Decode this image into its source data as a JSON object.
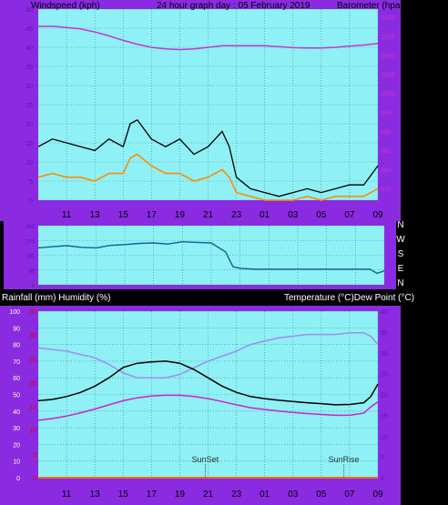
{
  "colors": {
    "frame": "#8a2be2",
    "plot_bg": "#8ff0f5",
    "grid": "#3a8a8a",
    "wind_gust": "#000000",
    "wind_avg": "#ff8c00",
    "barometer": "#cc33cc",
    "direction": "#1a5f8a",
    "humidity": "#a08cf0",
    "temperature": "#000000",
    "dew_point": "#d020d0",
    "rain_axis": "#e00000",
    "rain_line": "#ff6a00",
    "header_text": "#000000"
  },
  "chart_data": [
    {
      "type": "line",
      "id": "wind-baro",
      "title": "24 hour graph day : 05 February 2019",
      "ylabel_left": "Windspeed (kph)",
      "ylabel_right": "Barometer (hpa)",
      "x_ticks": [
        "11",
        "13",
        "15",
        "17",
        "19",
        "21",
        "23",
        "01",
        "03",
        "05",
        "07",
        "09"
      ],
      "xlim_hours": [
        9,
        33
      ],
      "left_ticks": [
        0,
        5,
        10,
        15,
        20,
        25,
        30,
        35,
        40,
        45,
        50
      ],
      "left_ylim": [
        0,
        50
      ],
      "right_ticks": [
        975,
        980,
        985,
        990,
        995,
        1000,
        1005,
        1010,
        1015,
        1020
      ],
      "right_ylim": [
        972,
        1022
      ],
      "grid": true,
      "series": [
        {
          "name": "Gust",
          "axis": "left",
          "x": [
            9,
            10,
            11,
            12,
            13,
            14,
            15,
            15.5,
            16,
            17,
            18,
            19,
            20,
            21,
            22,
            22.5,
            23,
            24,
            25,
            26,
            27,
            28,
            29,
            30,
            31,
            32,
            33
          ],
          "y": [
            14,
            16,
            15,
            14,
            13,
            16,
            14,
            20,
            21,
            16,
            14,
            16,
            12,
            14,
            18,
            14,
            6,
            3,
            2,
            1,
            2,
            3,
            2,
            3,
            4,
            4,
            9
          ]
        },
        {
          "name": "Average",
          "axis": "left",
          "x": [
            9,
            10,
            11,
            12,
            13,
            14,
            15,
            15.5,
            16,
            17,
            18,
            19,
            20,
            21,
            22,
            22.5,
            23,
            24,
            25,
            26,
            27,
            28,
            29,
            30,
            31,
            32,
            33
          ],
          "y": [
            6,
            7,
            6,
            6,
            5,
            7,
            7,
            11,
            12,
            9,
            7,
            7,
            5,
            6,
            8,
            6,
            2,
            1,
            0,
            0,
            0,
            1,
            0,
            1,
            1,
            1,
            3
          ]
        },
        {
          "name": "Barometer",
          "axis": "right",
          "x": [
            9,
            10,
            11,
            12,
            13,
            14,
            15,
            16,
            17,
            18,
            19,
            20,
            21,
            22,
            23,
            24,
            25,
            26,
            27,
            28,
            29,
            30,
            31,
            32,
            33
          ],
          "y": [
            1017.5,
            1017.5,
            1017.2,
            1016.8,
            1016.0,
            1015.0,
            1013.8,
            1012.8,
            1012.0,
            1011.6,
            1011.4,
            1011.6,
            1012.0,
            1012.4,
            1012.4,
            1012.4,
            1012.4,
            1012.2,
            1011.9,
            1011.8,
            1011.8,
            1012.0,
            1012.3,
            1012.6,
            1013.0
          ]
        }
      ]
    },
    {
      "type": "line",
      "id": "direction",
      "right_ticks": [
        "N",
        "W",
        "S",
        "E",
        "N"
      ],
      "left_ticks": [
        0,
        90,
        180,
        270,
        360
      ],
      "ylim": [
        0,
        360
      ],
      "xlim_hours": [
        9,
        33
      ],
      "grid": true,
      "series": [
        {
          "name": "Wind direction",
          "x": [
            9,
            10,
            11,
            12,
            13,
            14,
            15,
            16,
            17,
            18,
            19,
            20,
            21,
            22,
            22.5,
            23,
            24,
            25,
            26,
            27,
            28,
            29,
            30,
            31,
            32,
            32.5,
            33
          ],
          "y": [
            225,
            232,
            238,
            228,
            225,
            240,
            245,
            252,
            255,
            248,
            262,
            258,
            255,
            200,
            110,
            100,
            95,
            95,
            95,
            95,
            95,
            95,
            95,
            95,
            95,
            70,
            85
          ]
        }
      ]
    },
    {
      "type": "line",
      "id": "temp-hum",
      "ylabel_left": "Rainfall (mm)  Humidity (%)",
      "ylabel_right": "Temperature (°C)Dew Point (°C)",
      "x_ticks": [
        "11",
        "13",
        "15",
        "17",
        "19",
        "21",
        "23",
        "01",
        "03",
        "05",
        "07",
        "09"
      ],
      "xlim_hours": [
        9,
        33
      ],
      "humidity_ticks": [
        0,
        10,
        20,
        30,
        40,
        50,
        60,
        70,
        80,
        90,
        100
      ],
      "humidity_ylim": [
        0,
        100
      ],
      "rain_ticks": [
        0,
        5,
        10,
        15,
        20,
        25,
        30,
        35
      ],
      "rain_ylim": [
        0,
        35
      ],
      "temp_ticks": [
        0,
        5,
        10,
        15,
        20,
        25,
        30,
        35,
        40
      ],
      "temp_ylim": [
        0,
        40
      ],
      "annotations": [
        {
          "text": "SunSet",
          "x_hours": 20.8
        },
        {
          "text": "SunRise",
          "x_hours": 30.6
        }
      ],
      "grid": true,
      "series": [
        {
          "name": "Humidity",
          "axis": "humidity",
          "x": [
            9,
            10,
            11,
            12,
            13,
            14,
            15,
            16,
            17,
            18,
            19,
            20,
            21,
            22,
            23,
            24,
            25,
            26,
            27,
            28,
            29,
            30,
            31,
            32,
            32.5,
            33
          ],
          "y": [
            78,
            77,
            76,
            74,
            72,
            68,
            63,
            60,
            60,
            60,
            62,
            66,
            70,
            73,
            76,
            80,
            82,
            84,
            85,
            86,
            86,
            86,
            87,
            87,
            85,
            80
          ]
        },
        {
          "name": "Temperature",
          "axis": "temp",
          "x": [
            9,
            10,
            11,
            12,
            13,
            14,
            15,
            16,
            17,
            18,
            19,
            20,
            21,
            22,
            23,
            24,
            25,
            26,
            27,
            28,
            29,
            30,
            31,
            32,
            32.5,
            33
          ],
          "y": [
            18.5,
            18.8,
            19.5,
            20.5,
            22,
            24,
            26.5,
            27.5,
            27.8,
            28,
            27.5,
            26,
            24,
            22,
            20.5,
            19.5,
            19,
            18.6,
            18.3,
            18,
            17.8,
            17.5,
            17.6,
            18,
            19.5,
            22.5
          ]
        },
        {
          "name": "Dew Point",
          "axis": "temp",
          "x": [
            9,
            10,
            11,
            12,
            13,
            14,
            15,
            16,
            17,
            18,
            19,
            20,
            21,
            22,
            23,
            24,
            25,
            26,
            27,
            28,
            29,
            30,
            31,
            32,
            32.5,
            33
          ],
          "y": [
            13.8,
            14.2,
            14.8,
            15.6,
            16.5,
            17.5,
            18.5,
            19.2,
            19.6,
            19.8,
            19.8,
            19.5,
            19,
            18.3,
            17.5,
            16.8,
            16.4,
            16,
            15.7,
            15.4,
            15.2,
            15,
            15,
            15.5,
            17,
            18.2
          ]
        },
        {
          "name": "Rainfall",
          "axis": "rain",
          "x": [
            9,
            33
          ],
          "y": [
            0,
            0
          ]
        }
      ]
    }
  ]
}
